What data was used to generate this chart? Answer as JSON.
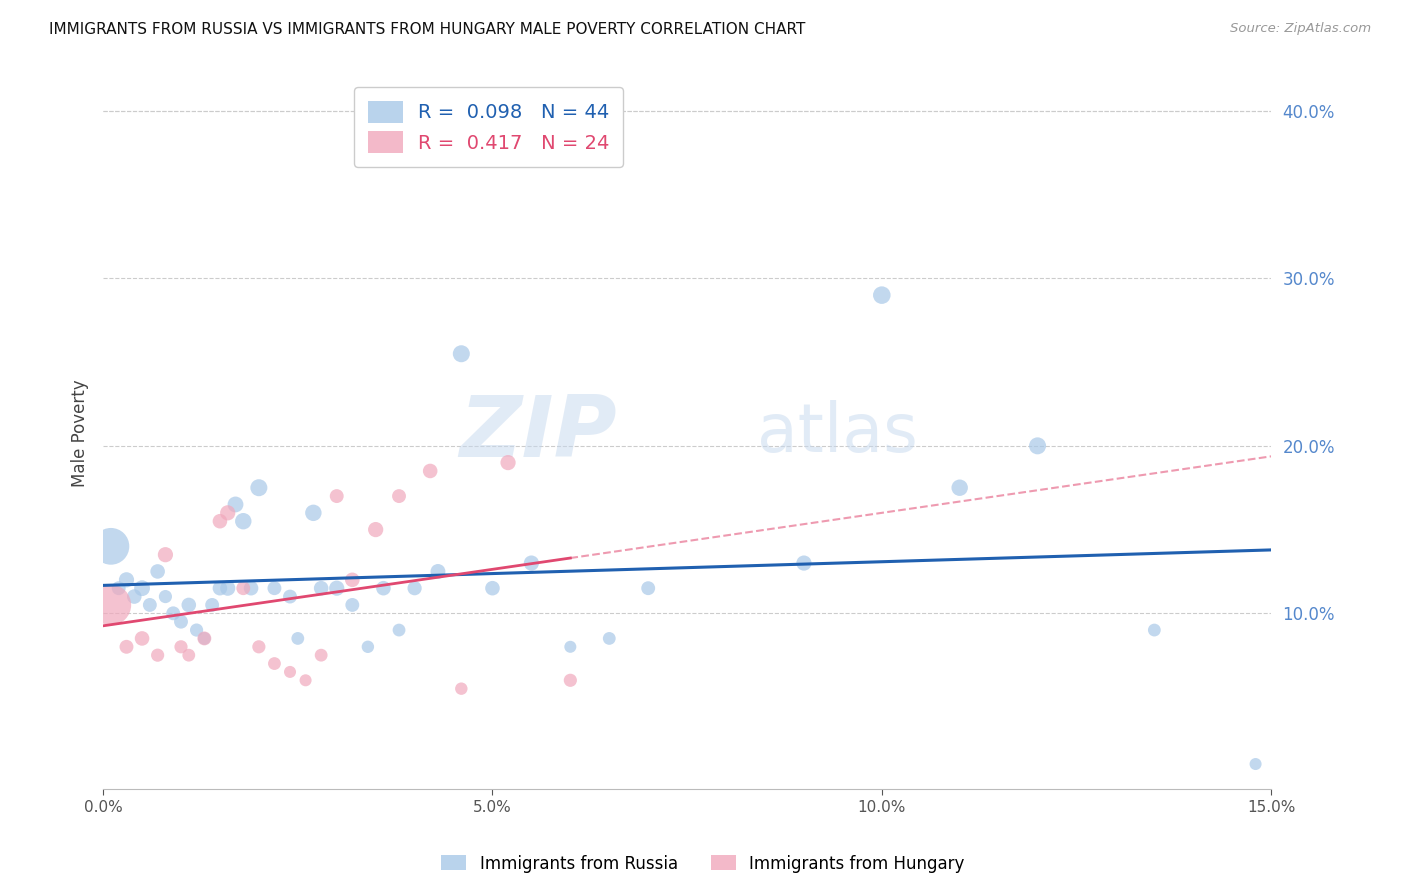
{
  "title": "IMMIGRANTS FROM RUSSIA VS IMMIGRANTS FROM HUNGARY MALE POVERTY CORRELATION CHART",
  "source": "Source: ZipAtlas.com",
  "ylabel": "Male Poverty",
  "xlim": [
    0.0,
    0.15
  ],
  "ylim": [
    -0.005,
    0.42
  ],
  "xticks": [
    0.0,
    0.05,
    0.1,
    0.15
  ],
  "yticks_right": [
    0.1,
    0.2,
    0.3,
    0.4
  ],
  "russia_color": "#a8c8e8",
  "hungary_color": "#f0a8bc",
  "russia_line_color": "#2060b0",
  "hungary_line_color": "#e04870",
  "legend_russia_R": "0.098",
  "legend_russia_N": "44",
  "legend_hungary_R": "0.417",
  "legend_hungary_N": "24",
  "russia_x": [
    0.001,
    0.002,
    0.003,
    0.004,
    0.005,
    0.006,
    0.007,
    0.008,
    0.009,
    0.01,
    0.011,
    0.012,
    0.013,
    0.014,
    0.015,
    0.016,
    0.017,
    0.018,
    0.019,
    0.02,
    0.022,
    0.024,
    0.025,
    0.027,
    0.028,
    0.03,
    0.032,
    0.034,
    0.036,
    0.038,
    0.04,
    0.043,
    0.046,
    0.05,
    0.055,
    0.06,
    0.065,
    0.07,
    0.09,
    0.1,
    0.11,
    0.12,
    0.135,
    0.148
  ],
  "russia_y": [
    0.14,
    0.115,
    0.12,
    0.11,
    0.115,
    0.105,
    0.125,
    0.11,
    0.1,
    0.095,
    0.105,
    0.09,
    0.085,
    0.105,
    0.115,
    0.115,
    0.165,
    0.155,
    0.115,
    0.175,
    0.115,
    0.11,
    0.085,
    0.16,
    0.115,
    0.115,
    0.105,
    0.08,
    0.115,
    0.09,
    0.115,
    0.125,
    0.255,
    0.115,
    0.13,
    0.08,
    0.085,
    0.115,
    0.13,
    0.29,
    0.175,
    0.2,
    0.09,
    0.01
  ],
  "russia_sizes": [
    700,
    100,
    120,
    110,
    130,
    100,
    110,
    90,
    100,
    100,
    110,
    90,
    85,
    100,
    110,
    120,
    130,
    140,
    110,
    150,
    100,
    100,
    85,
    140,
    110,
    120,
    100,
    80,
    110,
    85,
    105,
    115,
    150,
    110,
    120,
    75,
    85,
    100,
    120,
    160,
    140,
    150,
    85,
    75
  ],
  "hungary_x": [
    0.001,
    0.003,
    0.005,
    0.007,
    0.008,
    0.01,
    0.011,
    0.013,
    0.015,
    0.016,
    0.018,
    0.02,
    0.022,
    0.024,
    0.026,
    0.028,
    0.03,
    0.032,
    0.035,
    0.038,
    0.042,
    0.046,
    0.052,
    0.06
  ],
  "hungary_y": [
    0.105,
    0.08,
    0.085,
    0.075,
    0.135,
    0.08,
    0.075,
    0.085,
    0.155,
    0.16,
    0.115,
    0.08,
    0.07,
    0.065,
    0.06,
    0.075,
    0.17,
    0.12,
    0.15,
    0.17,
    0.185,
    0.055,
    0.19,
    0.06
  ],
  "hungary_sizes": [
    850,
    100,
    110,
    90,
    120,
    90,
    85,
    100,
    110,
    120,
    100,
    90,
    85,
    75,
    75,
    85,
    100,
    110,
    120,
    100,
    110,
    80,
    120,
    90
  ],
  "watermark_zip": "ZIP",
  "watermark_atlas": "atlas",
  "background_color": "#ffffff",
  "grid_color": "#cccccc"
}
